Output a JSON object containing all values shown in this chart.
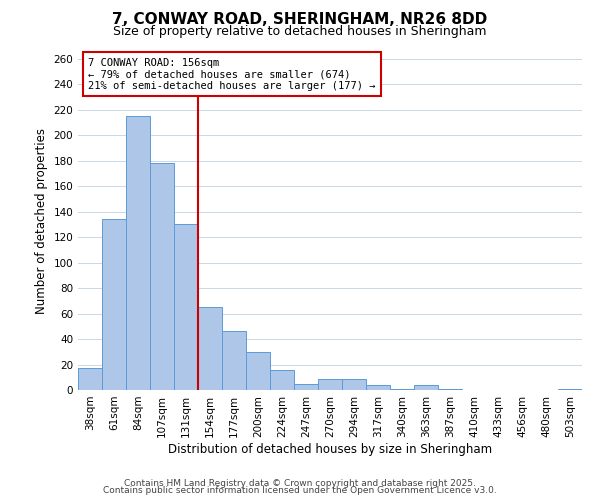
{
  "title_line1": "7, CONWAY ROAD, SHERINGHAM, NR26 8DD",
  "title_line2": "Size of property relative to detached houses in Sheringham",
  "bar_labels": [
    "38sqm",
    "61sqm",
    "84sqm",
    "107sqm",
    "131sqm",
    "154sqm",
    "177sqm",
    "200sqm",
    "224sqm",
    "247sqm",
    "270sqm",
    "294sqm",
    "317sqm",
    "340sqm",
    "363sqm",
    "387sqm",
    "410sqm",
    "433sqm",
    "456sqm",
    "480sqm",
    "503sqm"
  ],
  "bar_values": [
    17,
    134,
    215,
    178,
    130,
    65,
    46,
    30,
    16,
    5,
    9,
    9,
    4,
    1,
    4,
    1,
    0,
    0,
    0,
    0,
    1
  ],
  "bar_color": "#aec6e8",
  "bar_edge_color": "#5b9bd5",
  "vline_x": 5,
  "vline_color": "#cc0000",
  "annotation_line1": "7 CONWAY ROAD: 156sqm",
  "annotation_line2": "← 79% of detached houses are smaller (674)",
  "annotation_line3": "21% of semi-detached houses are larger (177) →",
  "annotation_box_edge_color": "#cc0000",
  "xlabel": "Distribution of detached houses by size in Sheringham",
  "ylabel": "Number of detached properties",
  "ylim": [
    0,
    265
  ],
  "yticks": [
    0,
    20,
    40,
    60,
    80,
    100,
    120,
    140,
    160,
    180,
    200,
    220,
    240,
    260
  ],
  "footer_line1": "Contains HM Land Registry data © Crown copyright and database right 2025.",
  "footer_line2": "Contains public sector information licensed under the Open Government Licence v3.0.",
  "background_color": "#ffffff",
  "grid_color": "#c8d8e8",
  "title1_fontsize": 11,
  "title2_fontsize": 9,
  "axis_label_fontsize": 8.5,
  "tick_fontsize": 7.5,
  "annot_fontsize": 7.5,
  "footer_fontsize": 6.5
}
